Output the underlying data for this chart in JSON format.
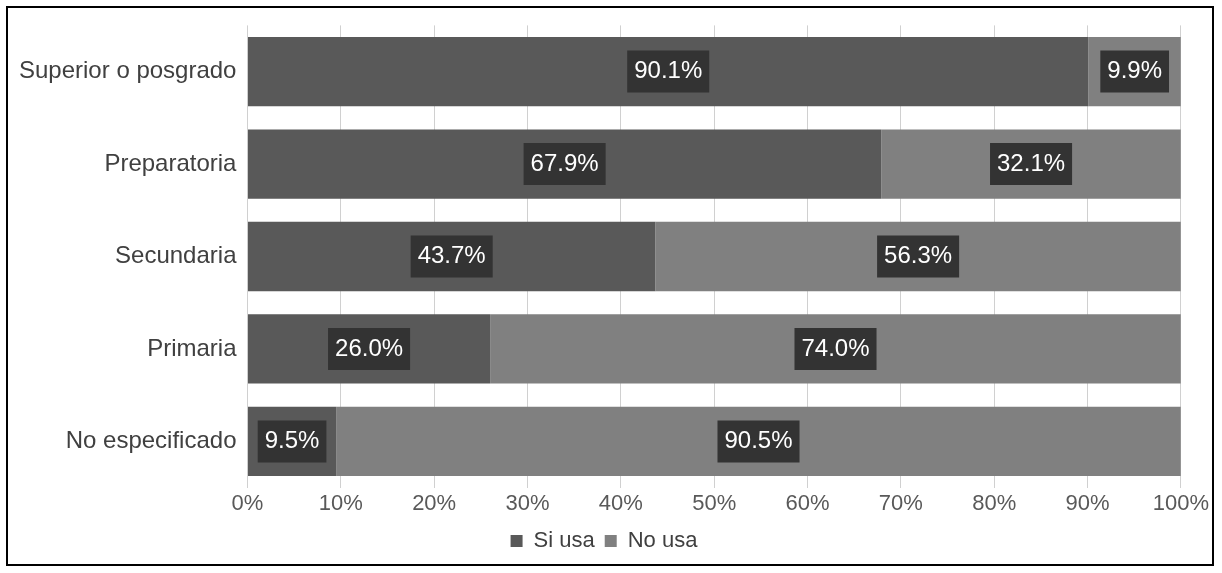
{
  "chart_data": {
    "type": "bar",
    "orientation": "horizontal",
    "stacked": true,
    "categories": [
      "Superior o posgrado",
      "Preparatoria",
      "Secundaria",
      "Primaria",
      "No especificado"
    ],
    "series": [
      {
        "name": "Si usa",
        "color": "#595959",
        "values": [
          90.1,
          67.9,
          43.7,
          26.0,
          9.5
        ],
        "value_labels": [
          "90.1%",
          "67.9%",
          "43.7%",
          "26.0%",
          "9.5%"
        ]
      },
      {
        "name": "No usa",
        "color": "#808080",
        "values": [
          9.9,
          32.1,
          56.3,
          74.0,
          90.5
        ],
        "value_labels": [
          "9.9%",
          "32.1%",
          "56.3%",
          "74.0%",
          "90.5%"
        ]
      }
    ],
    "xlim": [
      0,
      100
    ],
    "xticks": [
      {
        "value": 0,
        "label": "0%"
      },
      {
        "value": 10,
        "label": "10%"
      },
      {
        "value": 20,
        "label": "20%"
      },
      {
        "value": 30,
        "label": "30%"
      },
      {
        "value": 40,
        "label": "40%"
      },
      {
        "value": 50,
        "label": "50%"
      },
      {
        "value": 60,
        "label": "60%"
      },
      {
        "value": 70,
        "label": "70%"
      },
      {
        "value": 80,
        "label": "80%"
      },
      {
        "value": 90,
        "label": "90%"
      },
      {
        "value": 100,
        "label": "100%"
      }
    ],
    "grid": "x",
    "legend": "bottom"
  }
}
